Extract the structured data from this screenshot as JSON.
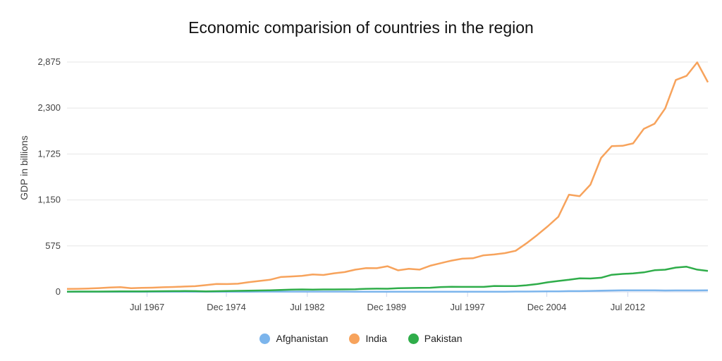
{
  "chart_data": {
    "type": "line",
    "title": "Economic comparision of countries in the region",
    "ylabel": "GDP in billions",
    "xlabel": "",
    "ylim": [
      0,
      2875
    ],
    "y_ticks": [
      0,
      575,
      1150,
      1725,
      2300,
      2875
    ],
    "y_tick_labels": [
      "0",
      "575",
      "1,150",
      "1,725",
      "2,300",
      "2,875"
    ],
    "xlim": [
      1960,
      2020
    ],
    "x_ticks": [
      {
        "label": "Jul 1967",
        "value": 1967.5
      },
      {
        "label": "Dec 1974",
        "value": 1974.92
      },
      {
        "label": "Jul 1982",
        "value": 1982.5
      },
      {
        "label": "Dec 1989",
        "value": 1989.92
      },
      {
        "label": "Jul 1997",
        "value": 1997.5
      },
      {
        "label": "Dec 2004",
        "value": 2004.92
      },
      {
        "label": "Jul 2012",
        "value": 2012.5
      }
    ],
    "grid": true,
    "legend_position": "bottom",
    "x": [
      1960,
      1961,
      1962,
      1963,
      1964,
      1965,
      1966,
      1967,
      1968,
      1969,
      1970,
      1971,
      1972,
      1973,
      1974,
      1975,
      1976,
      1977,
      1978,
      1979,
      1980,
      1981,
      1982,
      1983,
      1984,
      1985,
      1986,
      1987,
      1988,
      1989,
      1990,
      1991,
      1992,
      1993,
      1994,
      1995,
      1996,
      1997,
      1998,
      1999,
      2000,
      2001,
      2002,
      2003,
      2004,
      2005,
      2006,
      2007,
      2008,
      2009,
      2010,
      2011,
      2012,
      2013,
      2014,
      2015,
      2016,
      2017,
      2018,
      2019,
      2020
    ],
    "series": [
      {
        "name": "Afghanistan",
        "color": "#7cb5ec",
        "values": [
          0.5,
          0.5,
          0.6,
          0.8,
          0.8,
          1.0,
          1.1,
          1.2,
          1.4,
          1.4,
          1.7,
          1.8,
          1.6,
          1.9,
          2.4,
          2.4,
          2.6,
          3.0,
          3.4,
          3.7,
          3.6,
          3.5,
          3.6,
          3.4,
          3.3,
          3.2,
          3.1,
          3.0,
          2.9,
          2.8,
          2.8,
          2.8,
          2.7,
          2.6,
          2.5,
          2.4,
          2.3,
          2.2,
          2.1,
          2.0,
          2.0,
          2.5,
          4.1,
          4.6,
          5.3,
          6.2,
          7.1,
          9.8,
          10.1,
          12.4,
          15.9,
          17.8,
          20.5,
          20.6,
          20.5,
          19.9,
          18.0,
          18.9,
          18.4,
          18.9,
          20.1
        ]
      },
      {
        "name": "India",
        "color": "#f7a35c",
        "values": [
          37,
          39,
          42,
          48,
          56,
          59,
          46,
          50,
          53,
          58,
          62,
          67,
          71,
          85,
          99,
          98,
          102,
          121,
          137,
          152,
          186,
          193,
          201,
          218,
          212,
          233,
          248,
          279,
          297,
          296,
          321,
          270,
          288,
          279,
          327,
          360,
          392,
          415,
          421,
          458,
          468,
          485,
          514,
          607,
          709,
          820,
          940,
          1216,
          1198,
          1341,
          1676,
          1823,
          1827,
          1857,
          2039,
          2103,
          2295,
          2651,
          2702,
          2871,
          2623
        ]
      },
      {
        "name": "Pakistan",
        "color": "#2fad4a",
        "values": [
          3.7,
          4.1,
          4.3,
          4.7,
          5.4,
          6.0,
          6.7,
          7.4,
          7.9,
          8.6,
          10.0,
          10.7,
          9.3,
          6.3,
          8.8,
          11.3,
          13.3,
          15.2,
          17.8,
          19.7,
          23.7,
          28.0,
          30.7,
          28.7,
          31.1,
          31.1,
          31.4,
          33.3,
          38.5,
          40.2,
          40.0,
          45.5,
          48.6,
          51.5,
          52.0,
          60.6,
          63.3,
          62.4,
          62.2,
          62.9,
          73.9,
          72.3,
          72.3,
          83.2,
          98.1,
          120,
          137,
          152,
          170,
          168,
          177,
          214,
          225,
          231,
          244,
          271,
          278,
          304,
          315,
          279,
          263
        ]
      }
    ]
  }
}
